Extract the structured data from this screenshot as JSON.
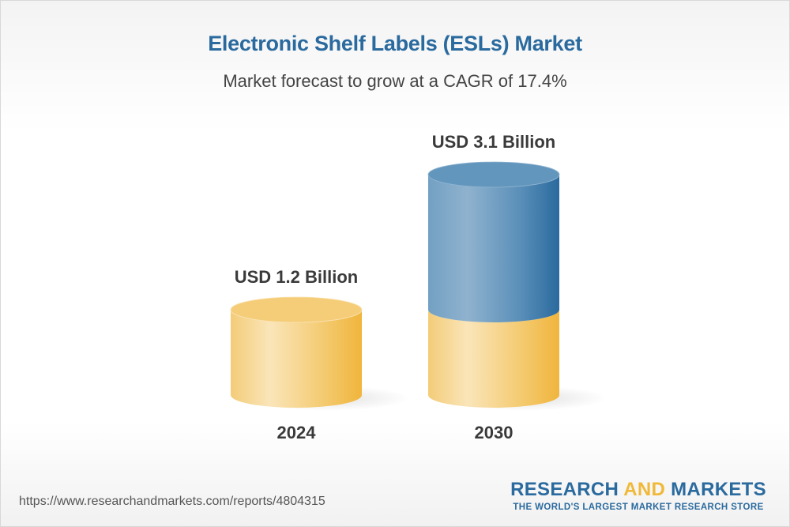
{
  "title": "Electronic Shelf Labels (ESLs) Market",
  "subtitle": "Market forecast to grow at a CAGR of 17.4%",
  "chart_data": {
    "type": "bar",
    "style": "3d-cylinder",
    "categories": [
      "2024",
      "2030"
    ],
    "values": [
      1.2,
      3.1
    ],
    "unit": "USD Billion",
    "data_labels": [
      "USD 1.2 Billion",
      "USD 3.1 Billion"
    ],
    "colors": {
      "base": "#f1b944",
      "growth": "#2a6a9e"
    },
    "grid": false,
    "title": "Electronic Shelf Labels (ESLs) Market",
    "subtitle": "Market forecast to grow at a CAGR of 17.4%"
  },
  "footer": {
    "url": "https://www.researchandmarkets.com/reports/4804315",
    "logo": {
      "part1": "RESEARCH ",
      "part2": "AND",
      "part3": " MARKETS",
      "tagline": "THE WORLD'S LARGEST MARKET RESEARCH STORE"
    }
  }
}
